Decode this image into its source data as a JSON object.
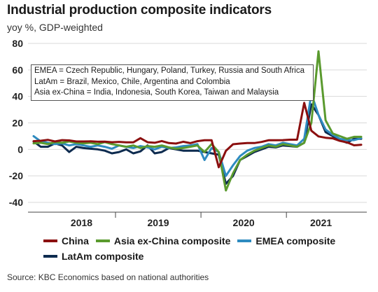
{
  "title": "Industrial production composite indicators",
  "subtitle": "yoy %, GDP-weighted",
  "source": "Source: KBC Economics based on national authorities",
  "annotation": [
    "EMEA = Czech Republic, Hungary, Poland, Turkey, Russia and South Africa",
    "LatAm = Brazil, Mexico, Chile, Argentina and Colombia",
    "Asia ex-China = India, Indonesia, South Korea, Taiwan and Malaysia"
  ],
  "chart_data": {
    "type": "line",
    "title": "Industrial production composite indicators",
    "subtitle": "yoy %, GDP-weighted",
    "ylim": [
      -40,
      80
    ],
    "yticks": [
      80,
      60,
      40,
      20,
      0,
      -20,
      -40
    ],
    "xlim": [
      0,
      54
    ],
    "year_labels": [
      "2018",
      "2019",
      "2020",
      "2021"
    ],
    "year_boundaries": [
      12,
      24,
      36
    ],
    "x": [
      "2017-12",
      "2018-01",
      "2018-02",
      "2018-03",
      "2018-04",
      "2018-05",
      "2018-06",
      "2018-07",
      "2018-08",
      "2018-09",
      "2018-10",
      "2018-11",
      "2018-12",
      "2019-01",
      "2019-02",
      "2019-03",
      "2019-04",
      "2019-05",
      "2019-06",
      "2019-07",
      "2019-08",
      "2019-09",
      "2019-10",
      "2019-11",
      "2019-12",
      "2020-01",
      "2020-02",
      "2020-03",
      "2020-04",
      "2020-05",
      "2020-06",
      "2020-07",
      "2020-08",
      "2020-09",
      "2020-10",
      "2020-11",
      "2020-12",
      "2021-01",
      "2021-02",
      "2021-03",
      "2021-04",
      "2021-05",
      "2021-06",
      "2021-07",
      "2021-08",
      "2021-09",
      "2021-10"
    ],
    "grid": true,
    "legend": "bottom",
    "series": [
      {
        "name": "China",
        "color": "#8b0f0f",
        "values": [
          6.2,
          6.5,
          7.2,
          6.0,
          7.0,
          6.8,
          6.0,
          6.0,
          6.1,
          5.8,
          5.9,
          5.4,
          5.7,
          5.3,
          5.3,
          8.5,
          5.4,
          5.0,
          6.3,
          4.8,
          4.4,
          5.8,
          4.7,
          6.2,
          6.9,
          6.9,
          -13.5,
          -1.1,
          3.9,
          4.4,
          4.8,
          4.8,
          5.6,
          6.9,
          6.9,
          7.0,
          7.3,
          7.3,
          35.1,
          14.1,
          9.8,
          8.8,
          8.3,
          6.4,
          5.3,
          3.1,
          3.5
        ]
      },
      {
        "name": "Asia ex-China composite",
        "color": "#5a9a2e",
        "values": [
          4.5,
          5.0,
          4.0,
          5.5,
          5.0,
          6.0,
          5.0,
          4.5,
          5.0,
          4.0,
          5.5,
          4.0,
          3.0,
          2.0,
          3.0,
          1.0,
          2.5,
          2.0,
          3.0,
          1.5,
          0.5,
          1.0,
          2.0,
          3.0,
          -2.0,
          4.0,
          -2.0,
          -31.0,
          -18.0,
          -8.0,
          -4.0,
          -1.0,
          1.0,
          3.0,
          2.0,
          4.0,
          3.0,
          2.0,
          5.0,
          20.0,
          74.0,
          22.0,
          12.0,
          10.0,
          8.0,
          9.5,
          9.5
        ]
      },
      {
        "name": "EMEA composite",
        "color": "#2e8bc0",
        "values": [
          10.0,
          6.0,
          5.0,
          4.0,
          4.5,
          3.0,
          4.0,
          3.0,
          2.0,
          3.0,
          2.0,
          0.5,
          3.0,
          2.0,
          1.0,
          2.5,
          1.5,
          0.0,
          2.0,
          1.0,
          1.5,
          2.5,
          3.0,
          4.0,
          -8.0,
          1.0,
          -2.0,
          -20.0,
          -12.0,
          -5.0,
          -1.0,
          1.0,
          2.0,
          4.0,
          3.0,
          5.0,
          4.0,
          3.0,
          8.0,
          42.0,
          26.0,
          15.0,
          11.0,
          8.0,
          7.0,
          7.0,
          8.5
        ]
      },
      {
        "name": "LatAm composite",
        "color": "#0d2b4f",
        "values": [
          6.0,
          2.0,
          2.0,
          4.5,
          3.0,
          -2.0,
          2.0,
          1.0,
          0.5,
          0.0,
          -1.0,
          -3.0,
          -2.0,
          0.0,
          -3.0,
          -1.5,
          3.0,
          -3.0,
          -2.0,
          1.0,
          0.0,
          -1.0,
          -1.0,
          -1.0,
          -2.0,
          -3.0,
          -4.0,
          -26.0,
          -20.0,
          -8.0,
          -5.0,
          -2.0,
          0.0,
          2.0,
          1.5,
          3.0,
          2.5,
          2.0,
          5.0,
          34.0,
          26.0,
          13.0,
          10.0,
          7.0,
          5.0,
          8.0,
          8.0
        ]
      }
    ]
  }
}
